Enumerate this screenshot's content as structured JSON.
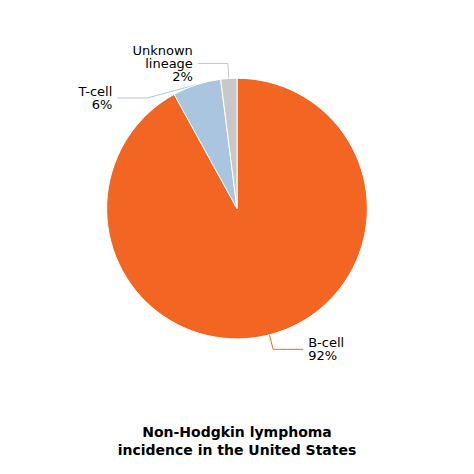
{
  "chart_data": {
    "type": "pie",
    "title": "Non-Hodgkin lymphoma\nincidence in the United States",
    "categories": [
      "B-cell",
      "T-cell",
      "Unknown\nlineage"
    ],
    "values": [
      92,
      6,
      2
    ],
    "value_labels": [
      "92%",
      "6%",
      "2%"
    ],
    "colors": [
      "#f26522",
      "#aac5e0",
      "#c8c8c8"
    ],
    "data_labels": true
  }
}
